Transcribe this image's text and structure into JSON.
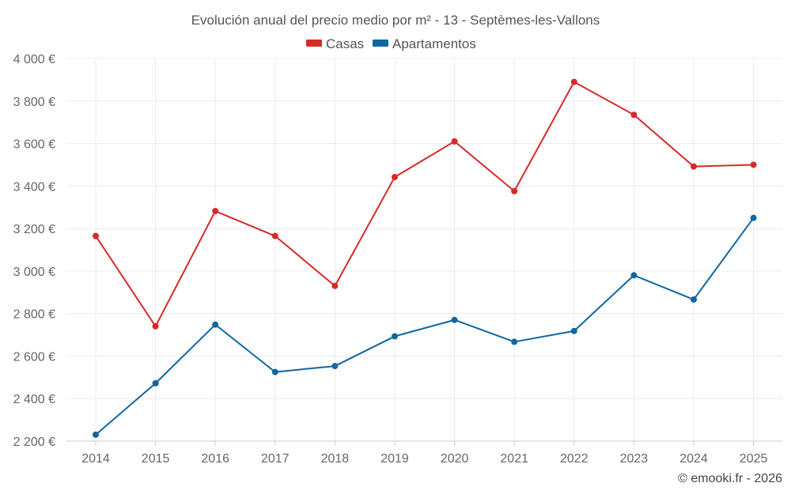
{
  "chart_data": {
    "type": "line",
    "title": "Evolución anual del precio medio por m² - 13 - Septèmes-les-Vallons",
    "categories": [
      "2014",
      "2015",
      "2016",
      "2017",
      "2018",
      "2019",
      "2020",
      "2021",
      "2022",
      "2023",
      "2024",
      "2025"
    ],
    "series": [
      {
        "name": "Casas",
        "color": "#d62a2a",
        "values": [
          3165,
          2740,
          3282,
          3165,
          2930,
          3442,
          3610,
          3376,
          3890,
          3735,
          3492,
          3500
        ]
      },
      {
        "name": "Apartamentos",
        "color": "#0f67a0",
        "values": [
          2230,
          2472,
          2748,
          2525,
          2553,
          2693,
          2770,
          2667,
          2718,
          2980,
          2866,
          3250
        ]
      }
    ],
    "ylim": [
      2200,
      4000
    ],
    "yticks": [
      {
        "value": 2200,
        "label": "2 200 €"
      },
      {
        "value": 2400,
        "label": "2 400 €"
      },
      {
        "value": 2600,
        "label": "2 600 €"
      },
      {
        "value": 2800,
        "label": "2 800 €"
      },
      {
        "value": 3000,
        "label": "3 000 €"
      },
      {
        "value": 3200,
        "label": "3 200 €"
      },
      {
        "value": 3400,
        "label": "3 400 €"
      },
      {
        "value": 3600,
        "label": "3 600 €"
      },
      {
        "value": 3800,
        "label": "3 800 €"
      },
      {
        "value": 4000,
        "label": "4 000 €"
      }
    ],
    "xlabel": "",
    "ylabel": "",
    "grid": true,
    "legend_position": "top-center"
  },
  "credit": "© emooki.fr - 2026"
}
